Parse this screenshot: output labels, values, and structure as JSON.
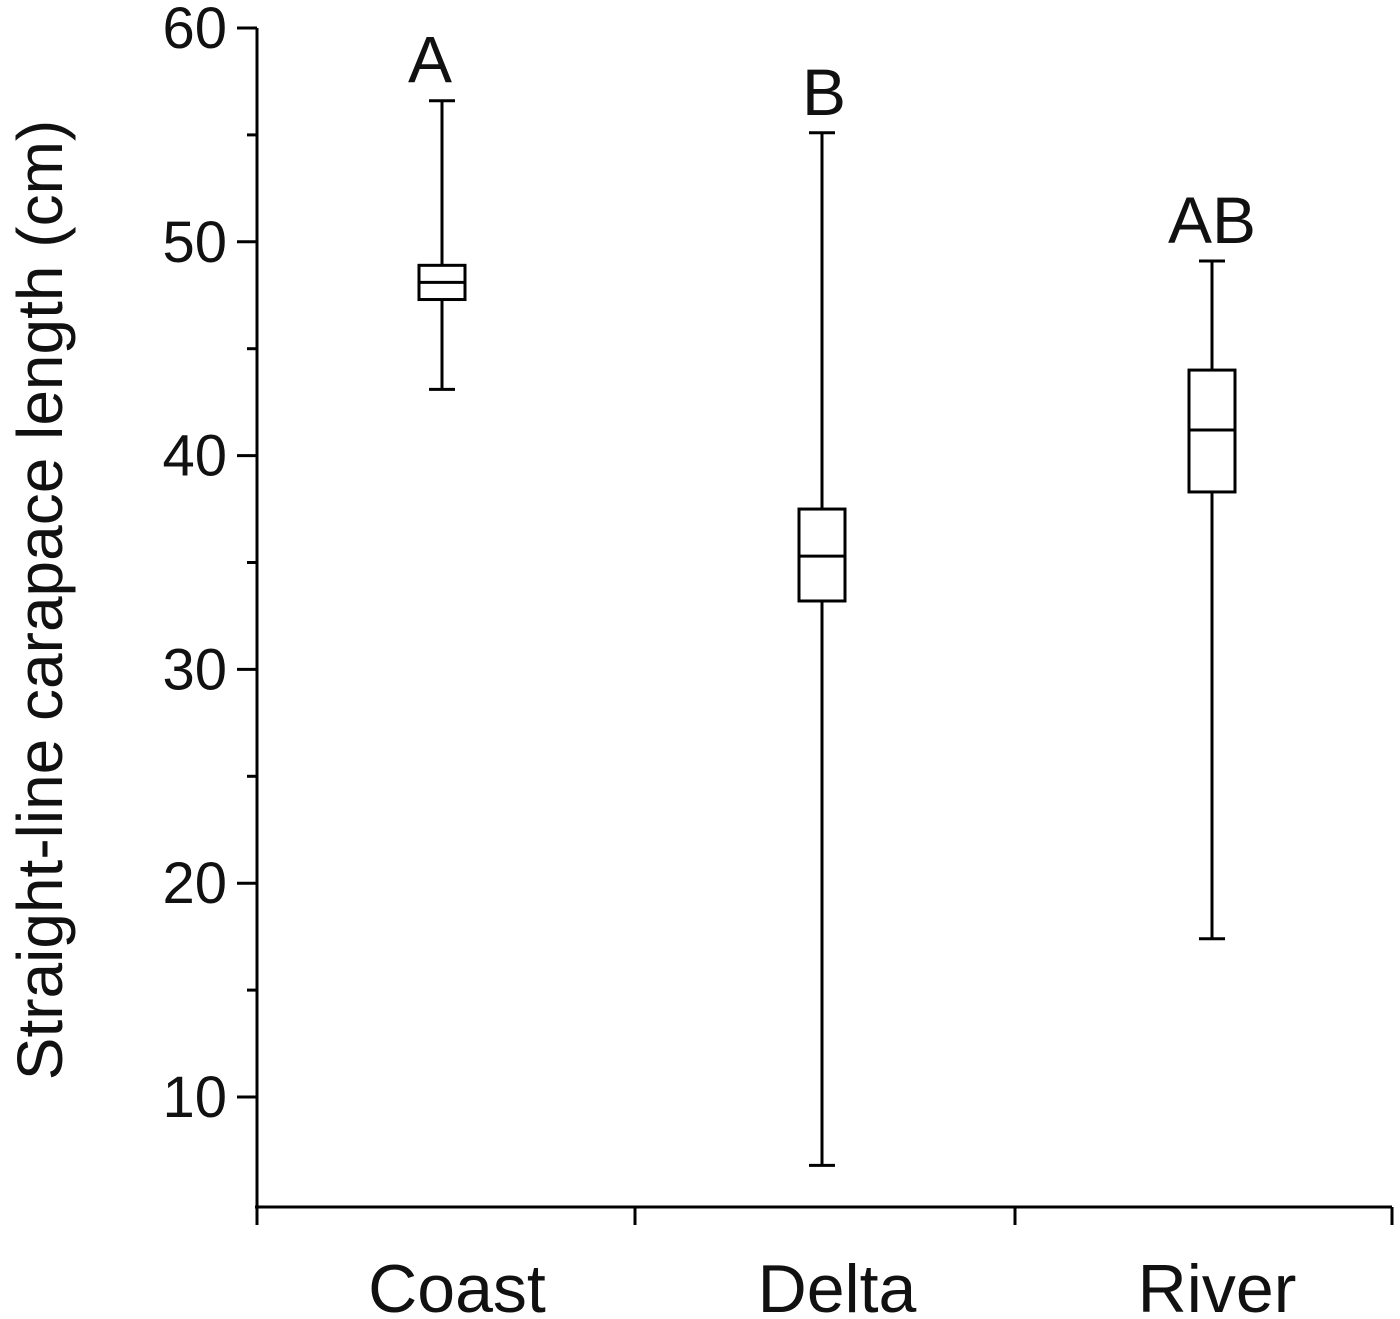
{
  "chart_data": {
    "type": "box",
    "title": "",
    "xlabel": "",
    "ylabel": "Straight-line carapace length (cm)",
    "ylim": [
      5,
      60
    ],
    "yticks": [
      10,
      20,
      30,
      40,
      50,
      60
    ],
    "yminor": [
      15,
      25,
      35,
      45,
      55
    ],
    "categories": [
      "Coast",
      "Delta",
      "River"
    ],
    "series": [
      {
        "category": "Coast",
        "min": 43.1,
        "q1": 47.3,
        "median": 48.1,
        "q3": 48.9,
        "max": 56.6,
        "group_label": "A"
      },
      {
        "category": "Delta",
        "min": 6.8,
        "q1": 33.2,
        "median": 35.3,
        "q3": 37.5,
        "max": 55.1,
        "group_label": "B"
      },
      {
        "category": "River",
        "min": 17.4,
        "q1": 38.3,
        "median": 41.2,
        "q3": 44.0,
        "max": 49.1,
        "group_label": "AB"
      }
    ],
    "grid": false,
    "legend": "none"
  }
}
